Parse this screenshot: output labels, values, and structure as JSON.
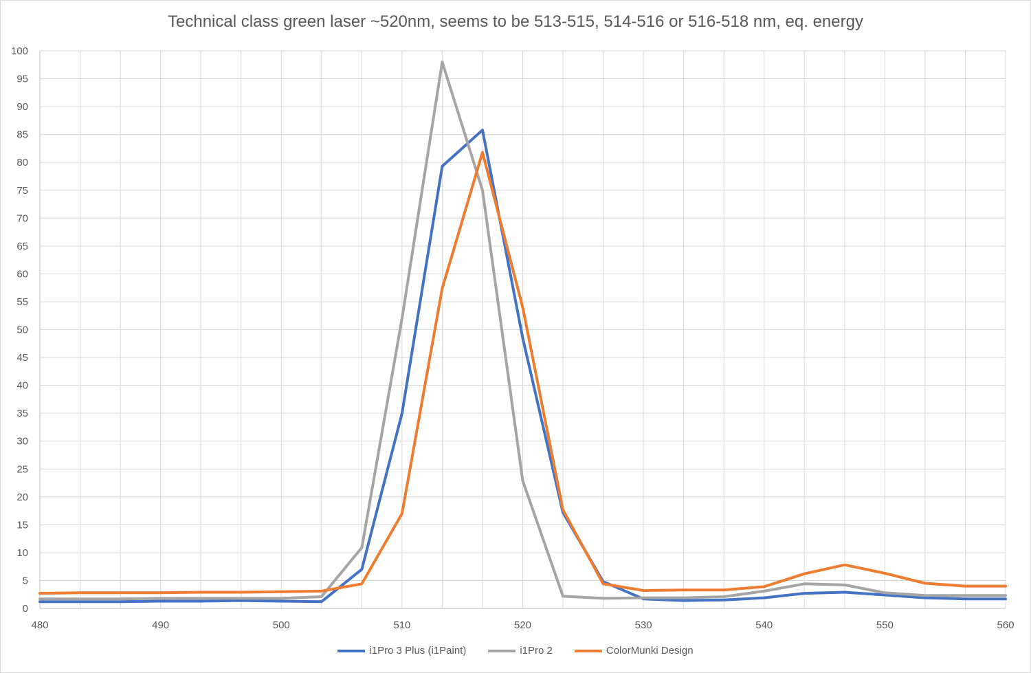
{
  "chart_data": {
    "type": "line",
    "title": "Technical class green laser ~520nm, seems to be 513-515, 514-516 or 516-518 nm, eq. energy",
    "xlabel": "",
    "ylabel": "",
    "xlim": [
      480,
      560
    ],
    "ylim": [
      0,
      100
    ],
    "x_ticks": [
      480,
      490,
      500,
      510,
      520,
      530,
      540,
      550,
      560
    ],
    "y_ticks": [
      0,
      5,
      10,
      15,
      20,
      25,
      30,
      35,
      40,
      45,
      50,
      55,
      60,
      65,
      70,
      75,
      80,
      85,
      90,
      95,
      100
    ],
    "grid": true,
    "legend_position": "bottom",
    "x": [
      480,
      483.33,
      486.67,
      490,
      493.33,
      496.67,
      500,
      503.33,
      506.67,
      510,
      513.33,
      516.67,
      520,
      523.33,
      526.67,
      530,
      533.33,
      536.67,
      540,
      543.33,
      546.67,
      550,
      553.33,
      556.67,
      560
    ],
    "series": [
      {
        "name": "i1Pro 3 Plus (i1Paint)",
        "color": "#4472c4",
        "values": [
          1.2,
          1.2,
          1.2,
          1.3,
          1.3,
          1.4,
          1.3,
          1.2,
          7.0,
          35.0,
          79.3,
          85.8,
          48.5,
          17.2,
          4.8,
          1.7,
          1.4,
          1.5,
          1.9,
          2.7,
          2.9,
          2.4,
          1.9,
          1.7,
          1.7
        ]
      },
      {
        "name": "i1Pro 2",
        "color": "#a5a5a5",
        "values": [
          1.7,
          1.7,
          1.7,
          1.8,
          1.8,
          1.8,
          1.8,
          2.1,
          10.9,
          52.0,
          98.0,
          75.0,
          22.9,
          2.2,
          1.8,
          1.9,
          1.9,
          2.1,
          3.1,
          4.4,
          4.2,
          2.8,
          2.3,
          2.3,
          2.3
        ]
      },
      {
        "name": "ColorMunki Design",
        "color": "#ed7d31",
        "values": [
          2.7,
          2.8,
          2.8,
          2.8,
          2.9,
          2.9,
          3.0,
          3.1,
          4.4,
          17.0,
          57.4,
          81.8,
          54.0,
          17.7,
          4.4,
          3.2,
          3.3,
          3.3,
          3.9,
          6.2,
          7.8,
          6.3,
          4.5,
          4.0,
          4.0
        ]
      }
    ]
  }
}
